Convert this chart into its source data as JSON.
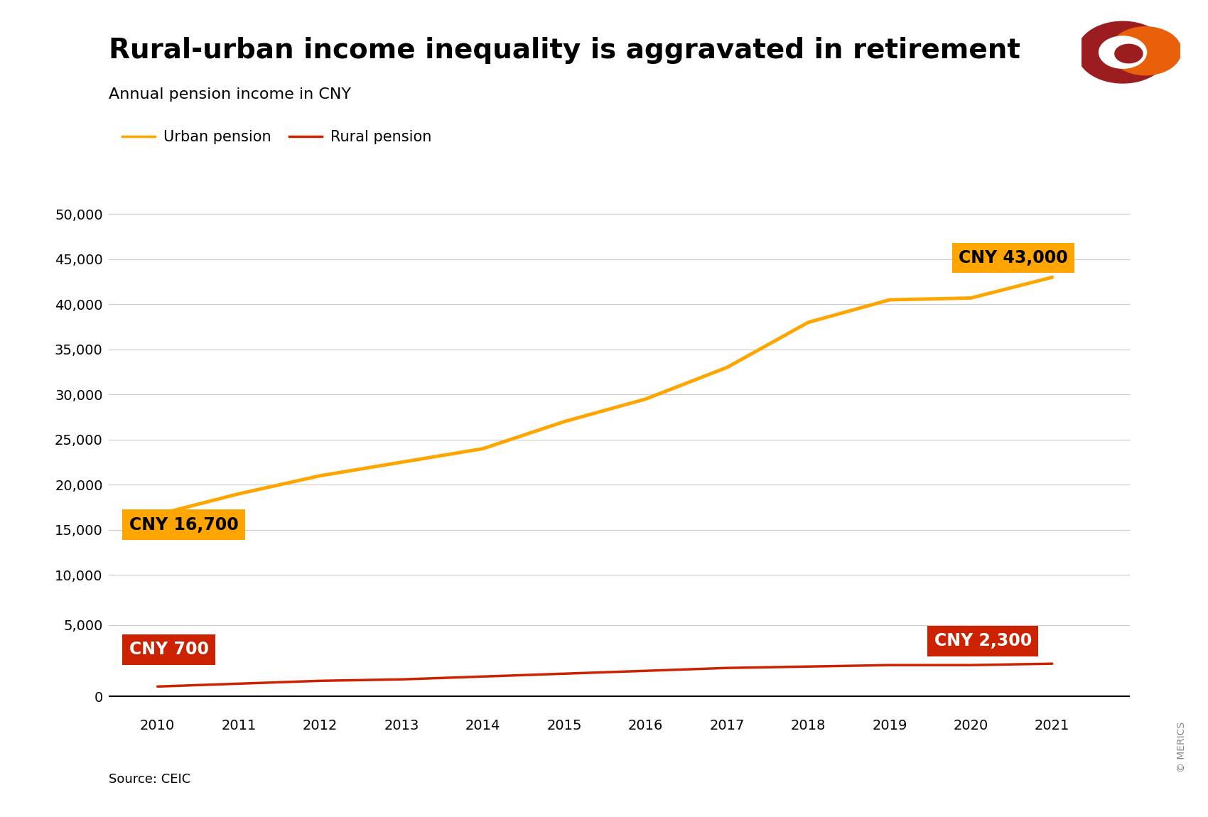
{
  "years": [
    2010,
    2011,
    2012,
    2013,
    2014,
    2015,
    2016,
    2017,
    2018,
    2019,
    2020,
    2021
  ],
  "urban": [
    16700,
    19000,
    21000,
    22500,
    24000,
    27000,
    29500,
    33000,
    38000,
    40500,
    40700,
    43000
  ],
  "rural": [
    700,
    900,
    1100,
    1200,
    1400,
    1600,
    1800,
    2000,
    2100,
    2200,
    2200,
    2300
  ],
  "urban_color": "#FFA500",
  "rural_color": "#CC2200",
  "title": "Rural-urban income inequality is aggravated in retirement",
  "subtitle": "Annual pension income in CNY",
  "legend_urban": "Urban pension",
  "legend_rural": "Rural pension",
  "source": "Source: CEIC",
  "urban_label_start": "CNY 16,700",
  "urban_label_end": "CNY 43,000",
  "rural_label_start": "CNY 700",
  "rural_label_end": "CNY 2,300",
  "urban_box_color": "#FFA500",
  "urban_text_color": "#000000",
  "rural_box_color": "#CC2200",
  "rural_text_color": "#ffffff",
  "bg_color": "#ffffff",
  "upper_yticks": [
    10000,
    15000,
    20000,
    25000,
    30000,
    35000,
    40000,
    45000,
    50000
  ],
  "lower_yticks": [
    0,
    5000
  ],
  "title_fontsize": 28,
  "subtitle_fontsize": 16,
  "tick_fontsize": 14,
  "legend_fontsize": 15,
  "annot_fontsize": 17,
  "source_fontsize": 13,
  "copyright_text": "© MERICS"
}
